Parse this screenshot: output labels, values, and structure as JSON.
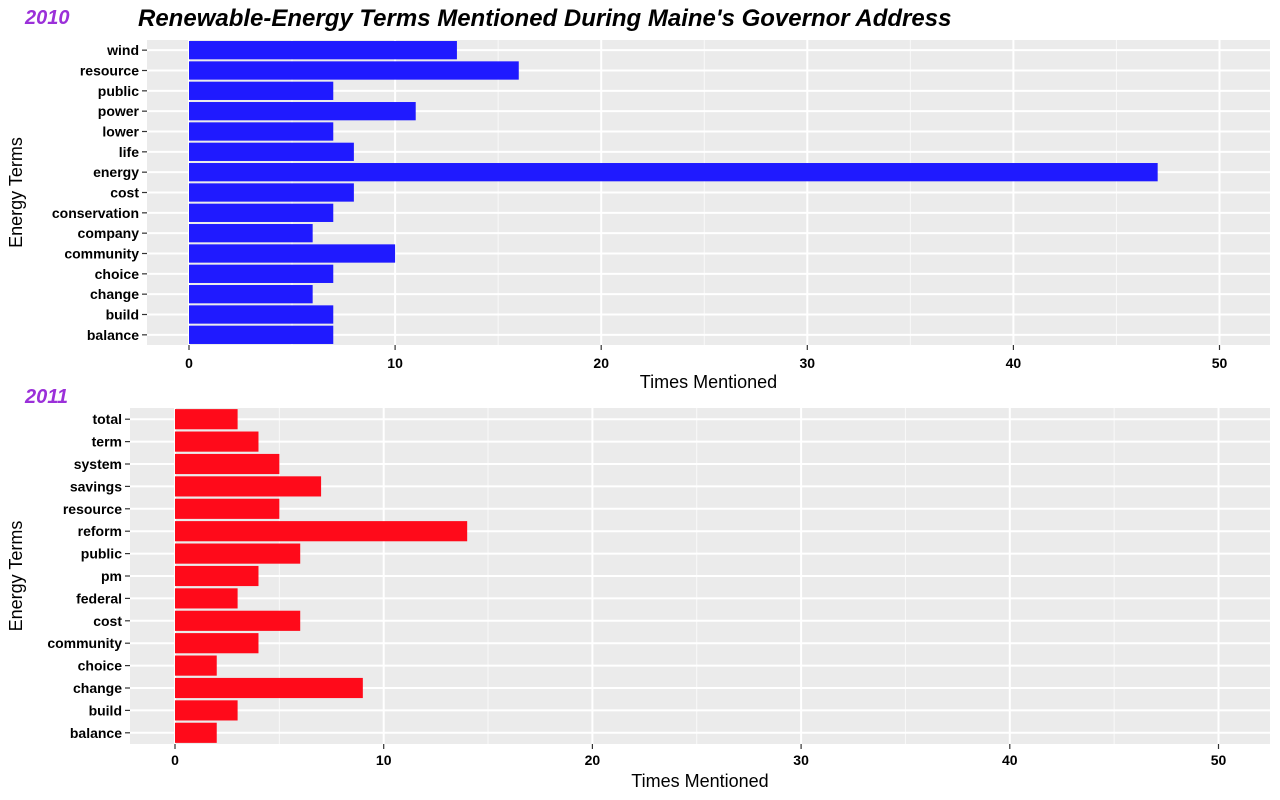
{
  "title": "Renewable-Energy Terms Mentioned During Maine's Governor Address",
  "colors": {
    "panel_background": "#ebebeb",
    "grid": "#ffffff",
    "year_label": "#9b30d9",
    "series_2010": "#1f1aff",
    "series_2011": "#ff0a1a"
  },
  "chart_data": [
    {
      "type": "bar",
      "orientation": "horizontal",
      "panel_label": "2010",
      "xlabel": "Times Mentioned",
      "ylabel": "Energy Terms",
      "xlim": [
        0,
        51
      ],
      "xticks": [
        0,
        10,
        20,
        30,
        40,
        50
      ],
      "grid": true,
      "categories": [
        "wind",
        "resource",
        "public",
        "power",
        "lower",
        "life",
        "energy",
        "cost",
        "conservation",
        "company",
        "community",
        "choice",
        "change",
        "build",
        "balance"
      ],
      "values": [
        13,
        16,
        7,
        11,
        7,
        8,
        47,
        8,
        7,
        6,
        10,
        7,
        6,
        7,
        7
      ],
      "color": "#1f1aff"
    },
    {
      "type": "bar",
      "orientation": "horizontal",
      "panel_label": "2011",
      "xlabel": "Times Mentioned",
      "ylabel": "Energy Terms",
      "xlim": [
        0,
        51
      ],
      "xticks": [
        0,
        10,
        20,
        30,
        40,
        50
      ],
      "grid": true,
      "categories": [
        "total",
        "term",
        "system",
        "savings",
        "resource",
        "reform",
        "public",
        "pm",
        "federal",
        "cost",
        "community",
        "choice",
        "change",
        "build",
        "balance"
      ],
      "values": [
        3,
        4,
        5,
        7,
        5,
        14,
        6,
        4,
        3,
        6,
        4,
        2,
        9,
        3,
        2
      ],
      "color": "#ff0a1a"
    }
  ]
}
